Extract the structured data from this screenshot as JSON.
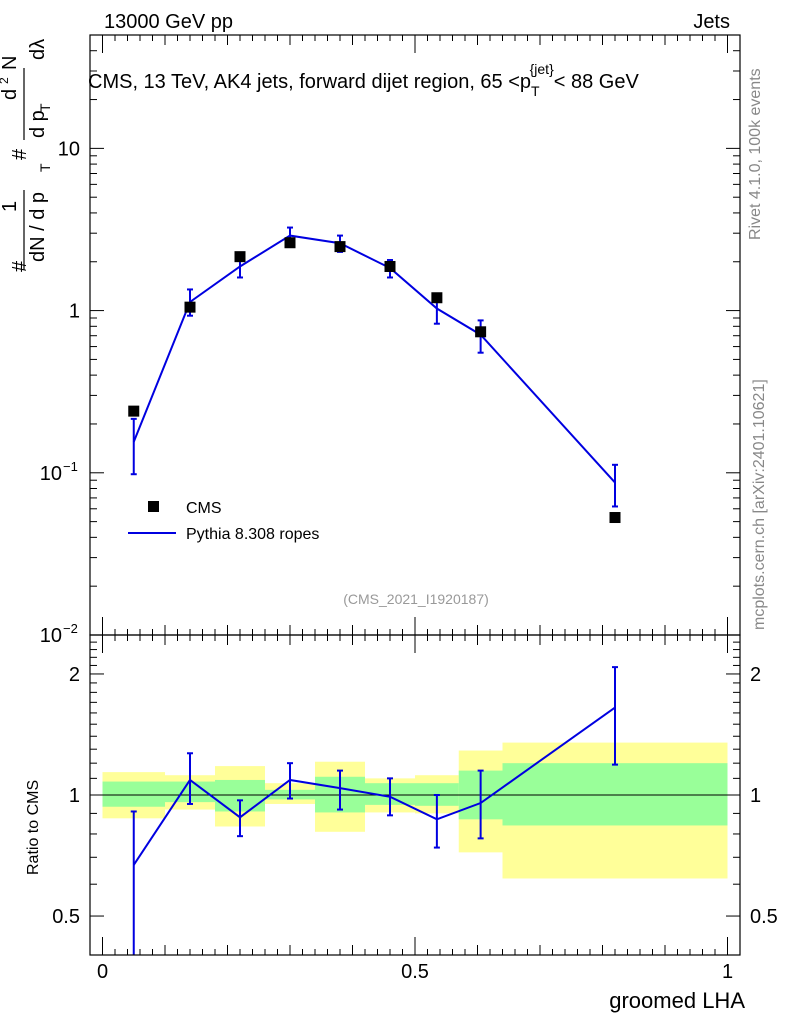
{
  "header": {
    "left": "13000 GeV pp",
    "right": "Jets"
  },
  "side_labels": {
    "rivet": "Rivet 4.1.0,  100k events",
    "mcplots": "mcplots.cern.ch [arXiv:2401.10621]"
  },
  "colors": {
    "mc_line": "#0000e0",
    "data_marker": "#000000",
    "band_inner": "#99ff99",
    "band_outer": "#ffff99",
    "watermark": "#999999"
  },
  "chart_data": [
    {
      "type": "line",
      "title": "CMS, 13 TeV, AK4 jets, forward dijet region, 65 <p_T^{jet}< 88 GeV",
      "title_parts": {
        "prefix": "CMS, 13 TeV, AK4 jets, forward dijet region, 65 <p",
        "sub": "T",
        "sup": "{jet}",
        "suffix": "< 88 GeV"
      },
      "ylabel_parts": [
        "#",
        "1",
        "dN / d p",
        "T",
        "#",
        "d p",
        "T",
        "d",
        "2",
        "N",
        "dλ"
      ],
      "yscale": "log",
      "xlim": [
        -0.02,
        1.02
      ],
      "ylim": [
        0.01,
        50
      ],
      "y_ticks": [
        {
          "value": 10,
          "label": "10"
        },
        {
          "value": 1,
          "label": "1"
        },
        {
          "value": 0.1,
          "label": "10",
          "exp": "−1"
        },
        {
          "value": 0.01,
          "label": "10",
          "exp": "−2"
        }
      ],
      "watermark": "(CMS_2021_I1920187)",
      "legend": {
        "placement": "lower-left",
        "entries": [
          {
            "name": "CMS",
            "marker": "square"
          },
          {
            "name": "Pythia 8.308 ropes",
            "marker": "line"
          }
        ]
      },
      "series": [
        {
          "name": "CMS",
          "x": [
            0.05,
            0.14,
            0.22,
            0.3,
            0.38,
            0.46,
            0.535,
            0.605,
            0.82
          ],
          "values": [
            0.24,
            1.05,
            2.15,
            2.62,
            2.48,
            1.87,
            1.2,
            0.74,
            0.053
          ]
        },
        {
          "name": "Pythia 8.308 ropes",
          "x": [
            0.05,
            0.14,
            0.22,
            0.3,
            0.38,
            0.46,
            0.535,
            0.605,
            0.82
          ],
          "values": [
            0.155,
            1.13,
            1.87,
            2.9,
            2.6,
            1.83,
            1.03,
            0.71,
            0.087
          ],
          "err_low": [
            0.098,
            0.93,
            1.6,
            2.5,
            2.3,
            1.6,
            0.83,
            0.55,
            0.062
          ],
          "err_high": [
            0.215,
            1.35,
            2.15,
            3.25,
            2.9,
            2.05,
            1.22,
            0.87,
            0.112
          ]
        }
      ]
    },
    {
      "type": "line",
      "ylabel": "Ratio to CMS",
      "xlabel": "groomed LHA",
      "yscale": "log",
      "xlim": [
        -0.02,
        1.02
      ],
      "ylim": [
        0.4,
        2.5
      ],
      "x_ticks": [
        {
          "value": 0,
          "label": "0"
        },
        {
          "value": 0.5,
          "label": "0.5"
        },
        {
          "value": 1,
          "label": "1"
        }
      ],
      "y_ticks": [
        {
          "value": 0.5,
          "label": "0.5"
        },
        {
          "value": 1,
          "label": "1"
        },
        {
          "value": 2,
          "label": "2"
        }
      ],
      "bands": [
        {
          "x0": 0.0,
          "x1": 0.1,
          "inner": [
            0.935,
            1.08
          ],
          "outer": [
            0.875,
            1.14
          ]
        },
        {
          "x0": 0.1,
          "x1": 0.18,
          "inner": [
            0.96,
            1.08
          ],
          "outer": [
            0.92,
            1.12
          ]
        },
        {
          "x0": 0.18,
          "x1": 0.26,
          "inner": [
            0.91,
            1.09
          ],
          "outer": [
            0.835,
            1.18
          ]
        },
        {
          "x0": 0.26,
          "x1": 0.34,
          "inner": [
            0.975,
            1.03
          ],
          "outer": [
            0.95,
            1.07
          ]
        },
        {
          "x0": 0.34,
          "x1": 0.42,
          "inner": [
            0.905,
            1.11
          ],
          "outer": [
            0.81,
            1.21
          ]
        },
        {
          "x0": 0.42,
          "x1": 0.5,
          "inner": [
            0.945,
            1.07
          ],
          "outer": [
            0.905,
            1.1
          ]
        },
        {
          "x0": 0.5,
          "x1": 0.57,
          "inner": [
            0.94,
            1.07
          ],
          "outer": [
            0.9,
            1.12
          ]
        },
        {
          "x0": 0.57,
          "x1": 0.64,
          "inner": [
            0.87,
            1.15
          ],
          "outer": [
            0.72,
            1.29
          ]
        },
        {
          "x0": 0.64,
          "x1": 1.0,
          "inner": [
            0.84,
            1.2
          ],
          "outer": [
            0.62,
            1.35
          ]
        }
      ],
      "series": [
        {
          "name": "Pythia 8.308 ropes",
          "x": [
            0.05,
            0.14,
            0.22,
            0.3,
            0.38,
            0.46,
            0.535,
            0.605,
            0.82
          ],
          "values": [
            0.67,
            1.09,
            0.88,
            1.09,
            1.04,
            0.99,
            0.87,
            0.955,
            1.65
          ],
          "err_low": [
            0.36,
            0.95,
            0.79,
            0.98,
            0.92,
            0.89,
            0.74,
            0.78,
            1.19
          ],
          "err_high": [
            0.91,
            1.27,
            0.97,
            1.2,
            1.15,
            1.1,
            1.0,
            1.15,
            2.08
          ]
        }
      ]
    }
  ]
}
